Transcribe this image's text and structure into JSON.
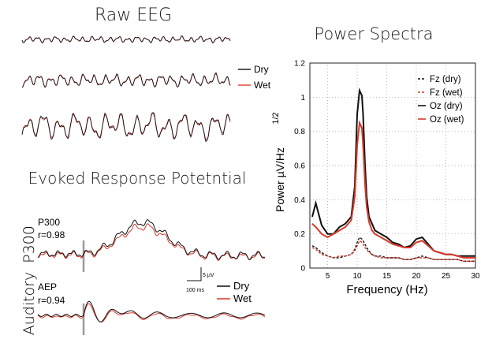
{
  "colors": {
    "dry": "#111111",
    "wet": "#d8392b",
    "stim": "#9a9a9a",
    "frame": "#222222",
    "grid": "#9a9a9a"
  },
  "raw_eeg": {
    "title": "Raw EEG",
    "legend": [
      {
        "label": "Dry",
        "color": "#111111"
      },
      {
        "label": "Wet",
        "color": "#d8392b"
      }
    ]
  },
  "evoked": {
    "title": "Evoked Response Potetntial",
    "panels": [
      {
        "side_label": "P300",
        "name": "P300",
        "corr": "r=0.98"
      },
      {
        "side_label": "Auditory",
        "name": "AEP",
        "corr": "r=0.94"
      }
    ],
    "scalebar": {
      "amplitude": "5 µV",
      "time": "100 ms"
    },
    "legend": [
      {
        "label": "Dry",
        "color": "#111111"
      },
      {
        "label": "Wet",
        "color": "#d8392b"
      }
    ]
  },
  "chart_data": [
    {
      "type": "line",
      "title": "Power Spectra",
      "xlabel": "Frequency (Hz)",
      "ylabel": "Power µV/Hz",
      "ylabel_exp": "1/2",
      "xlim": [
        2,
        30
      ],
      "ylim": [
        0,
        1.2
      ],
      "xticks": [
        "5",
        "10",
        "15",
        "20",
        "25",
        "30"
      ],
      "yticks": [
        "0",
        "0.2",
        "0.4",
        "0.6",
        "0.8",
        "1",
        "1.2"
      ],
      "grid": "dotted",
      "legend_position": "top-right",
      "x": [
        2.4,
        3,
        4,
        5,
        6,
        7,
        8,
        9,
        9.6,
        10,
        10.4,
        10.8,
        11,
        11.3,
        11.6,
        12,
        12.5,
        13,
        14,
        15,
        16,
        17,
        18,
        19,
        20,
        21,
        22,
        23,
        24,
        25,
        26,
        27,
        28,
        29,
        30
      ],
      "series": [
        {
          "name": "Fz (dry)",
          "style": "dashed",
          "color": "#111111",
          "values": [
            0.13,
            0.12,
            0.09,
            0.07,
            0.06,
            0.06,
            0.07,
            0.08,
            0.11,
            0.15,
            0.18,
            0.17,
            0.16,
            0.14,
            0.12,
            0.1,
            0.08,
            0.07,
            0.07,
            0.06,
            0.06,
            0.06,
            0.05,
            0.05,
            0.06,
            0.07,
            0.06,
            0.05,
            0.05,
            0.05,
            0.05,
            0.05,
            0.04,
            0.04,
            0.04
          ]
        },
        {
          "name": "Fz (wet)",
          "style": "dashed",
          "color": "#d8392b",
          "values": [
            0.12,
            0.11,
            0.08,
            0.07,
            0.06,
            0.07,
            0.07,
            0.08,
            0.1,
            0.13,
            0.16,
            0.15,
            0.14,
            0.12,
            0.11,
            0.09,
            0.08,
            0.07,
            0.06,
            0.06,
            0.06,
            0.06,
            0.05,
            0.05,
            0.06,
            0.06,
            0.06,
            0.05,
            0.05,
            0.05,
            0.05,
            0.05,
            0.04,
            0.04,
            0.04
          ]
        },
        {
          "name": "Oz (dry)",
          "style": "solid",
          "color": "#111111",
          "values": [
            0.3,
            0.38,
            0.25,
            0.2,
            0.2,
            0.24,
            0.26,
            0.3,
            0.48,
            0.9,
            1.04,
            1.01,
            0.9,
            0.62,
            0.42,
            0.3,
            0.26,
            0.22,
            0.2,
            0.18,
            0.15,
            0.14,
            0.12,
            0.13,
            0.17,
            0.18,
            0.14,
            0.1,
            0.09,
            0.08,
            0.08,
            0.07,
            0.07,
            0.07,
            0.07
          ]
        },
        {
          "name": "Oz (wet)",
          "style": "solid",
          "color": "#d8392b",
          "values": [
            0.26,
            0.24,
            0.2,
            0.18,
            0.2,
            0.22,
            0.24,
            0.28,
            0.42,
            0.72,
            0.85,
            0.82,
            0.72,
            0.5,
            0.36,
            0.27,
            0.22,
            0.2,
            0.18,
            0.16,
            0.14,
            0.13,
            0.12,
            0.12,
            0.15,
            0.16,
            0.13,
            0.1,
            0.09,
            0.08,
            0.08,
            0.07,
            0.06,
            0.06,
            0.06
          ]
        }
      ]
    }
  ]
}
